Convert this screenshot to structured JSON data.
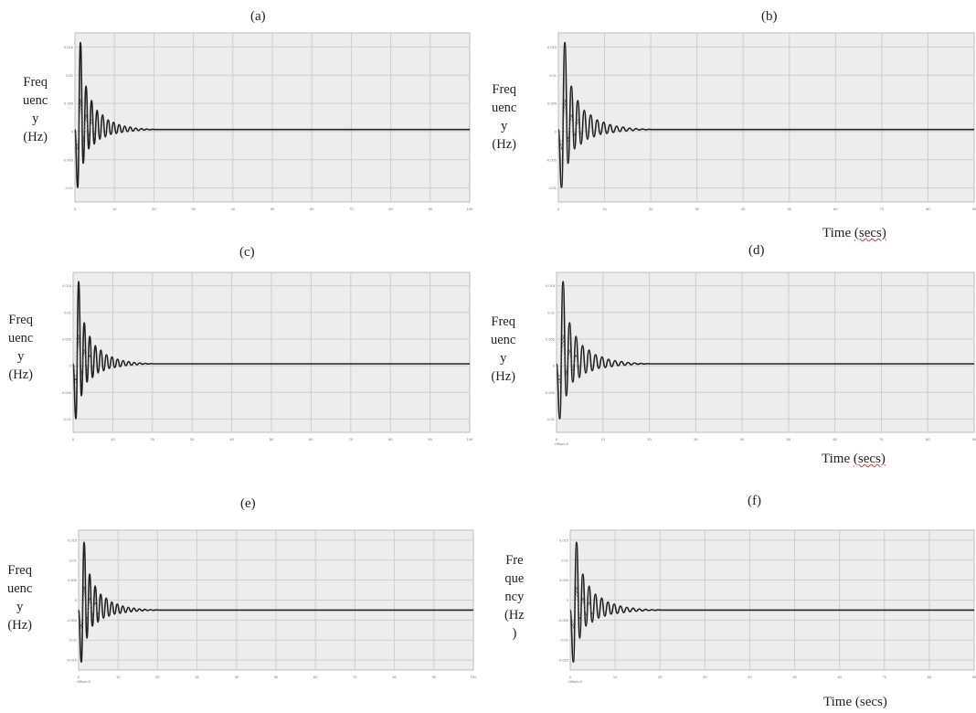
{
  "panels": [
    {
      "title": "(a)",
      "ylabel_lines": [
        "Freq",
        "uenc",
        "y",
        "(Hz)"
      ],
      "xlabel": "",
      "yticks": [
        "0.015",
        "0.01",
        "0.005",
        "0",
        "-0.005",
        "-0.01"
      ],
      "xticks": [
        "0",
        "10",
        "20",
        "30",
        "40",
        "50",
        "60",
        "70",
        "80",
        "90",
        "100"
      ],
      "corner_label": ""
    },
    {
      "title": "(b)",
      "ylabel_lines": [
        "Freq",
        "uenc",
        "y",
        "(Hz)"
      ],
      "xlabel": "Time",
      "xlabel_unit": "(secs)",
      "yticks": [
        "0.015",
        "0.01",
        "0.005",
        "0",
        "-0.005",
        "-0.01"
      ],
      "xticks": [
        "0",
        "10",
        "20",
        "30",
        "40",
        "50",
        "60",
        "70",
        "80",
        "90"
      ],
      "corner_label": ""
    },
    {
      "title": "(c)",
      "ylabel_lines": [
        "Freq",
        "uenc",
        "y",
        "(Hz)"
      ],
      "xlabel": "",
      "yticks": [
        "0.015",
        "0.01",
        "0.005",
        "0",
        "-0.005",
        "-0.01"
      ],
      "xticks": [
        "0",
        "10",
        "20",
        "30",
        "40",
        "50",
        "60",
        "70",
        "80",
        "90",
        "100"
      ],
      "corner_label": ""
    },
    {
      "title": "(d)",
      "ylabel_lines": [
        "Freq",
        "uenc",
        "y",
        "(Hz)"
      ],
      "xlabel": "Time",
      "xlabel_unit": "(secs)",
      "yticks": [
        "0.015",
        "0.01",
        "0.005",
        "0",
        "-0.005",
        "-0.01"
      ],
      "xticks": [
        "0",
        "10",
        "20",
        "30",
        "40",
        "50",
        "60",
        "70",
        "80",
        "90"
      ],
      "corner_label": "Offset=0"
    },
    {
      "title": "(e)",
      "ylabel_lines": [
        "Freq",
        "uenc",
        "y",
        "(Hz)"
      ],
      "xlabel": "",
      "yticks": [
        "0.015",
        "0.01",
        "0.005",
        "0",
        "-0.005",
        "-0.01",
        "-0.015"
      ],
      "xticks": [
        "0",
        "10",
        "20",
        "30",
        "40",
        "50",
        "60",
        "70",
        "80",
        "90",
        "100"
      ],
      "corner_label": "Offset=0"
    },
    {
      "title": "(f)",
      "ylabel_lines": [
        "Fre",
        "que",
        "ncy",
        "(Hz",
        ")"
      ],
      "xlabel": "Time",
      "xlabel_unit": "(secs)",
      "yticks": [
        "0.015",
        "0.01",
        "0.005",
        "0",
        "-0.005",
        "-0.01",
        "-0.015"
      ],
      "xticks": [
        "0",
        "10",
        "20",
        "30",
        "40",
        "50",
        "60",
        "70",
        "80",
        "90"
      ],
      "corner_label": "Offset=0"
    }
  ],
  "chart_data": [
    {
      "type": "line",
      "title": "(a)",
      "ylabel": "Frequency (Hz)",
      "xlabel": "",
      "xlim": [
        0,
        100
      ],
      "ylim": [
        -0.015,
        0.02
      ],
      "grid": true,
      "series": [
        {
          "x": [
            0,
            0.7,
            1.4,
            2.1,
            2.8,
            3.5,
            4.2,
            4.9,
            5.6,
            6.3,
            7,
            7.7,
            8.4,
            9.1,
            9.8,
            10.5,
            11.2,
            11.9,
            12.6,
            13.3,
            14,
            14.7,
            15.4,
            16.1,
            16.8,
            17.5,
            18.2,
            18.9,
            19.6,
            20.3,
            21,
            22,
            25,
            30,
            40,
            50,
            60,
            70,
            80,
            90,
            100
          ],
          "y": [
            0,
            -0.012,
            0.018,
            -0.007,
            0.009,
            -0.004,
            0.006,
            -0.003,
            0.004,
            -0.002,
            0.003,
            -0.0015,
            0.002,
            -0.001,
            0.0015,
            -0.0008,
            0.001,
            -0.0006,
            0.0007,
            -0.0004,
            0.0005,
            -0.0003,
            0.0003,
            -0.0002,
            0.0002,
            -0.0001,
            0.0001,
            -5e-05,
            5e-05,
            0,
            0,
            0,
            0,
            0,
            0,
            0,
            0,
            0,
            0,
            0,
            0
          ]
        }
      ]
    },
    {
      "type": "line",
      "title": "(b)",
      "ylabel": "Frequency (Hz)",
      "xlabel": "Time (secs)",
      "xlim": [
        0,
        90
      ],
      "ylim": [
        -0.015,
        0.02
      ],
      "grid": true,
      "series": [
        {
          "x": [
            0,
            0.7,
            1.4,
            2.1,
            2.8,
            3.5,
            4.2,
            4.9,
            5.6,
            6.3,
            7,
            7.7,
            8.4,
            9.1,
            9.8,
            10.5,
            11.2,
            11.9,
            12.6,
            13.3,
            14,
            14.7,
            15.4,
            16.1,
            16.8,
            17.5,
            18.2,
            18.9,
            19.6,
            20.3,
            21,
            22,
            25,
            30,
            40,
            50,
            60,
            70,
            80,
            90
          ],
          "y": [
            0,
            -0.012,
            0.018,
            -0.007,
            0.009,
            -0.004,
            0.006,
            -0.003,
            0.004,
            -0.002,
            0.003,
            -0.0015,
            0.002,
            -0.001,
            0.0015,
            -0.0008,
            0.001,
            -0.0006,
            0.0007,
            -0.0004,
            0.0005,
            -0.0003,
            0.0003,
            -0.0002,
            0.0002,
            -0.0001,
            0.0001,
            -5e-05,
            5e-05,
            0,
            0,
            0,
            0,
            0,
            0,
            0,
            0,
            0,
            0,
            0
          ]
        }
      ]
    },
    {
      "type": "line",
      "title": "(c)",
      "ylabel": "Frequency (Hz)",
      "xlabel": "",
      "xlim": [
        0,
        100
      ],
      "ylim": [
        -0.015,
        0.02
      ],
      "grid": true,
      "series": [
        {
          "x": [
            0,
            0.7,
            1.4,
            2.1,
            2.8,
            3.5,
            4.2,
            4.9,
            5.6,
            6.3,
            7,
            7.7,
            8.4,
            9.1,
            9.8,
            10.5,
            11.2,
            11.9,
            12.6,
            13.3,
            14,
            14.7,
            15.4,
            16.1,
            16.8,
            17.5,
            18.2,
            18.9,
            19.6,
            20.3,
            21,
            22,
            25,
            30,
            40,
            50,
            60,
            70,
            80,
            90,
            100
          ],
          "y": [
            0,
            -0.012,
            0.018,
            -0.007,
            0.009,
            -0.004,
            0.006,
            -0.003,
            0.004,
            -0.002,
            0.003,
            -0.0015,
            0.002,
            -0.001,
            0.0015,
            -0.0008,
            0.001,
            -0.0006,
            0.0007,
            -0.0004,
            0.0005,
            -0.0003,
            0.0003,
            -0.0002,
            0.0002,
            -0.0001,
            0.0001,
            -5e-05,
            5e-05,
            0,
            0,
            0,
            0,
            0,
            0,
            0,
            0,
            0,
            0,
            0,
            0
          ]
        }
      ]
    },
    {
      "type": "line",
      "title": "(d)",
      "ylabel": "Frequency (Hz)",
      "xlabel": "Time (secs)",
      "xlim": [
        0,
        90
      ],
      "ylim": [
        -0.015,
        0.02
      ],
      "grid": true,
      "series": [
        {
          "x": [
            0,
            0.7,
            1.4,
            2.1,
            2.8,
            3.5,
            4.2,
            4.9,
            5.6,
            6.3,
            7,
            7.7,
            8.4,
            9.1,
            9.8,
            10.5,
            11.2,
            11.9,
            12.6,
            13.3,
            14,
            14.7,
            15.4,
            16.1,
            16.8,
            17.5,
            18.2,
            18.9,
            19.6,
            20.3,
            21,
            22,
            25,
            30,
            40,
            50,
            60,
            70,
            80,
            90
          ],
          "y": [
            0,
            -0.012,
            0.018,
            -0.007,
            0.009,
            -0.004,
            0.006,
            -0.003,
            0.004,
            -0.002,
            0.003,
            -0.0015,
            0.002,
            -0.001,
            0.0015,
            -0.0008,
            0.001,
            -0.0006,
            0.0007,
            -0.0004,
            0.0005,
            -0.0003,
            0.0003,
            -0.0002,
            0.0002,
            -0.0001,
            0.0001,
            -5e-05,
            5e-05,
            0,
            0,
            0,
            0,
            0,
            0,
            0,
            0,
            0,
            0,
            0
          ]
        }
      ]
    },
    {
      "type": "line",
      "title": "(e)",
      "ylabel": "Frequency (Hz)",
      "xlabel": "",
      "xlim": [
        0,
        100
      ],
      "ylim": [
        -0.015,
        0.02
      ],
      "grid": true,
      "series": [
        {
          "x": [
            0,
            0.7,
            1.4,
            2.1,
            2.8,
            3.5,
            4.2,
            4.9,
            5.6,
            6.3,
            7,
            7.7,
            8.4,
            9.1,
            9.8,
            10.5,
            11.2,
            11.9,
            12.6,
            13.3,
            14,
            14.7,
            15.4,
            16.1,
            16.8,
            17.5,
            18.2,
            18.9,
            19.6,
            20.3,
            21,
            22,
            25,
            30,
            40,
            50,
            60,
            70,
            80,
            90,
            100
          ],
          "y": [
            0,
            -0.013,
            0.017,
            -0.007,
            0.009,
            -0.004,
            0.006,
            -0.003,
            0.004,
            -0.002,
            0.003,
            -0.0015,
            0.002,
            -0.001,
            0.0015,
            -0.0008,
            0.001,
            -0.0006,
            0.0007,
            -0.0004,
            0.0005,
            -0.0003,
            0.0003,
            -0.0002,
            0.0002,
            -0.0001,
            0.0001,
            -5e-05,
            5e-05,
            0,
            0,
            0,
            0,
            0,
            0,
            0,
            0,
            0,
            0,
            0,
            0
          ]
        }
      ]
    },
    {
      "type": "line",
      "title": "(f)",
      "ylabel": "Frequency (Hz)",
      "xlabel": "Time (secs)",
      "xlim": [
        0,
        90
      ],
      "ylim": [
        -0.015,
        0.02
      ],
      "grid": true,
      "series": [
        {
          "x": [
            0,
            0.7,
            1.4,
            2.1,
            2.8,
            3.5,
            4.2,
            4.9,
            5.6,
            6.3,
            7,
            7.7,
            8.4,
            9.1,
            9.8,
            10.5,
            11.2,
            11.9,
            12.6,
            13.3,
            14,
            14.7,
            15.4,
            16.1,
            16.8,
            17.5,
            18.2,
            18.9,
            19.6,
            20.3,
            21,
            22,
            25,
            30,
            40,
            50,
            60,
            70,
            80,
            90
          ],
          "y": [
            0,
            -0.013,
            0.017,
            -0.007,
            0.009,
            -0.004,
            0.006,
            -0.003,
            0.004,
            -0.002,
            0.003,
            -0.0015,
            0.002,
            -0.001,
            0.0015,
            -0.0008,
            0.001,
            -0.0006,
            0.0007,
            -0.0004,
            0.0005,
            -0.0003,
            0.0003,
            -0.0002,
            0.0002,
            -0.0001,
            0.0001,
            -5e-05,
            5e-05,
            0,
            0,
            0,
            0,
            0,
            0,
            0,
            0,
            0,
            0,
            0
          ]
        }
      ]
    }
  ]
}
